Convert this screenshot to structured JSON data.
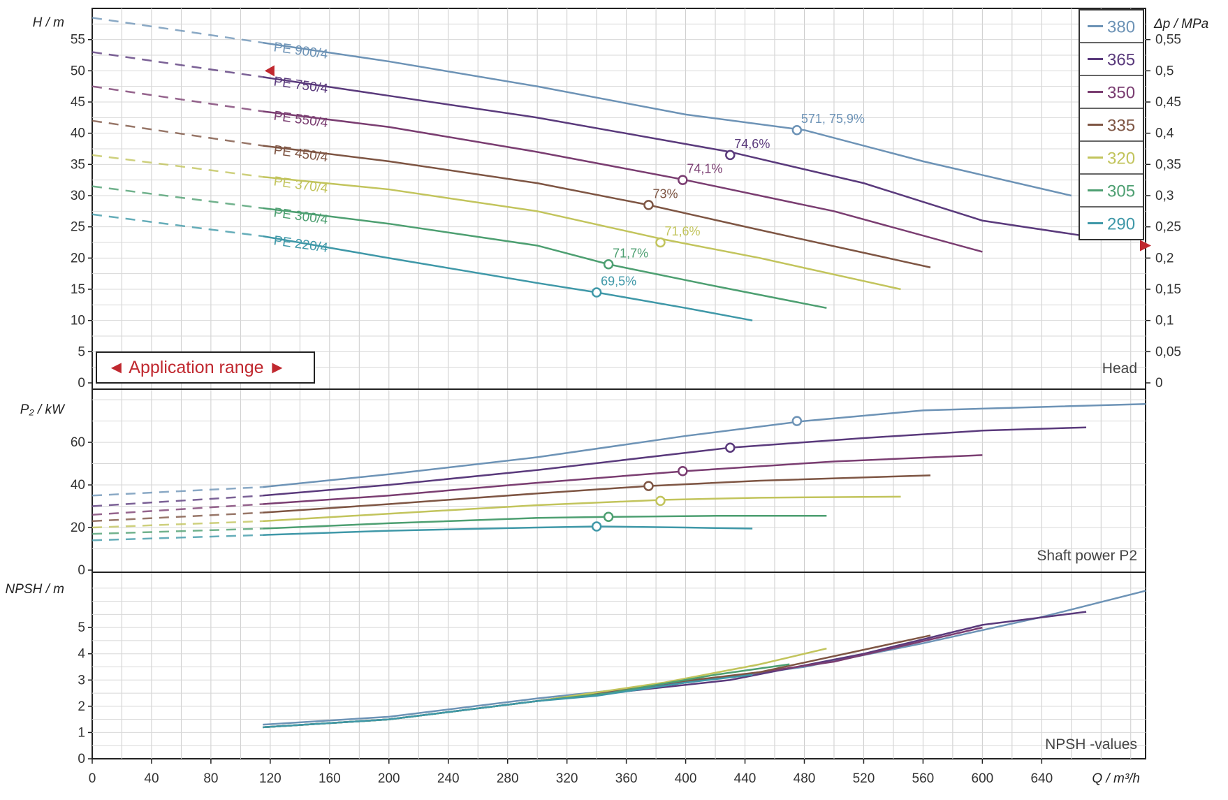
{
  "chart_data": {
    "type": "line",
    "x_axis": {
      "label": "Q / m³/h",
      "min": 0,
      "max": 710,
      "ticks": [
        0,
        40,
        80,
        120,
        160,
        200,
        240,
        280,
        320,
        360,
        400,
        440,
        480,
        520,
        560,
        600,
        640
      ]
    },
    "legend": {
      "position": "top-right",
      "entries": [
        "380",
        "365",
        "350",
        "335",
        "320",
        "305",
        "290"
      ]
    },
    "application_range_label": "◄ Application range ►",
    "series": [
      {
        "name": "380",
        "color": "#6d93b6",
        "curve_label": "PE 900/4",
        "head": [
          [
            0,
            58.5
          ],
          [
            115,
            54.5
          ],
          [
            200,
            51.5
          ],
          [
            300,
            47.5
          ],
          [
            400,
            43
          ],
          [
            480,
            40.5
          ],
          [
            560,
            35.5
          ],
          [
            660,
            30
          ]
        ],
        "power": [
          [
            0,
            35
          ],
          [
            115,
            39
          ],
          [
            200,
            45
          ],
          [
            300,
            53
          ],
          [
            400,
            63
          ],
          [
            480,
            70
          ],
          [
            560,
            75
          ],
          [
            710,
            78
          ]
        ],
        "npsh": [
          [
            115,
            1.3
          ],
          [
            200,
            1.6
          ],
          [
            300,
            2.3
          ],
          [
            400,
            2.9
          ],
          [
            480,
            3.5
          ],
          [
            560,
            4.4
          ],
          [
            640,
            5.4
          ],
          [
            710,
            6.4
          ]
        ],
        "bep": {
          "q": 475,
          "h": 40.5,
          "p": 70,
          "label": "571, 75,9%"
        }
      },
      {
        "name": "365",
        "color": "#5a3a7c",
        "curve_label": "PE 750/4",
        "head": [
          [
            0,
            53
          ],
          [
            115,
            49
          ],
          [
            200,
            46
          ],
          [
            300,
            42.5
          ],
          [
            430,
            37
          ],
          [
            520,
            32
          ],
          [
            600,
            26
          ],
          [
            670,
            23.5
          ]
        ],
        "power": [
          [
            0,
            30
          ],
          [
            115,
            35
          ],
          [
            200,
            40
          ],
          [
            300,
            47
          ],
          [
            430,
            57.5
          ],
          [
            520,
            62
          ],
          [
            600,
            65.5
          ],
          [
            670,
            67
          ]
        ],
        "npsh": [
          [
            115,
            1.2
          ],
          [
            200,
            1.5
          ],
          [
            300,
            2.2
          ],
          [
            430,
            3.0
          ],
          [
            520,
            4.0
          ],
          [
            600,
            5.1
          ],
          [
            670,
            5.6
          ]
        ],
        "bep": {
          "q": 430,
          "h": 36.5,
          "p": 57.5,
          "label": "74,6%"
        }
      },
      {
        "name": "350",
        "color": "#7a3d71",
        "curve_label": "PE 550/4",
        "head": [
          [
            0,
            47.5
          ],
          [
            115,
            43.5
          ],
          [
            200,
            41
          ],
          [
            300,
            37
          ],
          [
            400,
            32.5
          ],
          [
            500,
            27.5
          ],
          [
            600,
            21
          ]
        ],
        "power": [
          [
            0,
            26
          ],
          [
            115,
            31
          ],
          [
            200,
            35
          ],
          [
            300,
            41
          ],
          [
            400,
            46.5
          ],
          [
            500,
            51
          ],
          [
            600,
            54
          ]
        ],
        "npsh": [
          [
            115,
            1.2
          ],
          [
            200,
            1.5
          ],
          [
            300,
            2.2
          ],
          [
            400,
            2.9
          ],
          [
            500,
            3.7
          ],
          [
            600,
            5.0
          ]
        ],
        "bep": {
          "q": 398,
          "h": 32.5,
          "p": 46.5,
          "label": "74,1%"
        }
      },
      {
        "name": "335",
        "color": "#7e5543",
        "curve_label": "PE 450/4",
        "head": [
          [
            0,
            42
          ],
          [
            115,
            38
          ],
          [
            200,
            35.5
          ],
          [
            300,
            32
          ],
          [
            375,
            28.5
          ],
          [
            450,
            24.5
          ],
          [
            565,
            18.5
          ]
        ],
        "power": [
          [
            0,
            23
          ],
          [
            115,
            27
          ],
          [
            200,
            31
          ],
          [
            300,
            36
          ],
          [
            375,
            39.5
          ],
          [
            450,
            42
          ],
          [
            565,
            44.5
          ]
        ],
        "npsh": [
          [
            115,
            1.2
          ],
          [
            200,
            1.5
          ],
          [
            300,
            2.2
          ],
          [
            375,
            2.8
          ],
          [
            450,
            3.3
          ],
          [
            565,
            4.7
          ]
        ],
        "bep": {
          "q": 375,
          "h": 28.5,
          "p": 39.5,
          "label": "73%"
        }
      },
      {
        "name": "320",
        "color": "#c2c45c",
        "curve_label": "PE 370/4",
        "head": [
          [
            0,
            36.5
          ],
          [
            115,
            33
          ],
          [
            200,
            31
          ],
          [
            300,
            27.5
          ],
          [
            385,
            23
          ],
          [
            450,
            20
          ],
          [
            545,
            15
          ]
        ],
        "power": [
          [
            0,
            20
          ],
          [
            115,
            23
          ],
          [
            200,
            26.5
          ],
          [
            300,
            30.5
          ],
          [
            385,
            33
          ],
          [
            450,
            34
          ],
          [
            545,
            34.5
          ]
        ],
        "npsh": [
          [
            115,
            1.2
          ],
          [
            200,
            1.5
          ],
          [
            300,
            2.2
          ],
          [
            385,
            2.9
          ],
          [
            450,
            3.6
          ],
          [
            495,
            4.2
          ]
        ],
        "bep": {
          "q": 383,
          "h": 22.5,
          "p": 32.5,
          "label": "71,6%"
        }
      },
      {
        "name": "305",
        "color": "#4d9f71",
        "curve_label": "PE 300/4",
        "head": [
          [
            0,
            31.5
          ],
          [
            115,
            28
          ],
          [
            200,
            25.5
          ],
          [
            300,
            22
          ],
          [
            348,
            19
          ],
          [
            420,
            15.5
          ],
          [
            495,
            12
          ]
        ],
        "power": [
          [
            0,
            17
          ],
          [
            115,
            19.5
          ],
          [
            200,
            22
          ],
          [
            300,
            24.5
          ],
          [
            348,
            25
          ],
          [
            420,
            25.5
          ],
          [
            495,
            25.5
          ]
        ],
        "npsh": [
          [
            115,
            1.2
          ],
          [
            200,
            1.5
          ],
          [
            300,
            2.2
          ],
          [
            348,
            2.5
          ],
          [
            420,
            3.2
          ],
          [
            470,
            3.6
          ]
        ],
        "bep": {
          "q": 348,
          "h": 19,
          "p": 25,
          "label": "71,7%"
        }
      },
      {
        "name": "290",
        "color": "#3f98a8",
        "curve_label": "PE 220/4",
        "head": [
          [
            0,
            27
          ],
          [
            115,
            23.5
          ],
          [
            200,
            20
          ],
          [
            300,
            16
          ],
          [
            340,
            14.5
          ],
          [
            400,
            12
          ],
          [
            445,
            10
          ]
        ],
        "power": [
          [
            0,
            14
          ],
          [
            115,
            16.5
          ],
          [
            200,
            18.5
          ],
          [
            300,
            20
          ],
          [
            340,
            20.5
          ],
          [
            400,
            20
          ],
          [
            445,
            19.5
          ]
        ],
        "npsh": [
          [
            115,
            1.2
          ],
          [
            200,
            1.5
          ],
          [
            300,
            2.2
          ],
          [
            340,
            2.4
          ],
          [
            400,
            2.9
          ],
          [
            445,
            3.2
          ]
        ],
        "bep": {
          "q": 340,
          "h": 14.5,
          "p": 20.5,
          "label": "69,5%"
        }
      }
    ],
    "panels": [
      {
        "id": "head",
        "ylabel": "H / m",
        "title": "Head",
        "ymin": 0,
        "ymax": 60,
        "yticks": [
          0,
          5,
          10,
          15,
          20,
          25,
          30,
          35,
          40,
          45,
          50,
          55
        ],
        "right_axis": {
          "label": "Δp / MPa",
          "ticks": [
            "0",
            "0,05",
            "0,1",
            "0,15",
            "0,2",
            "0,25",
            "0,3",
            "0,35",
            "0,4",
            "0,45",
            "0,5",
            "0,55"
          ]
        }
      },
      {
        "id": "power",
        "ylabel": "P₂ / kW",
        "title": "Shaft power P2",
        "ymin": 0,
        "ymax": 82,
        "yticks": [
          0,
          20,
          40,
          60
        ]
      },
      {
        "id": "npsh",
        "ylabel": "NPSH / m",
        "title": "NPSH -values",
        "ymin": 0,
        "ymax": 7,
        "yticks": [
          0,
          1,
          2,
          3,
          4,
          5
        ]
      }
    ]
  }
}
